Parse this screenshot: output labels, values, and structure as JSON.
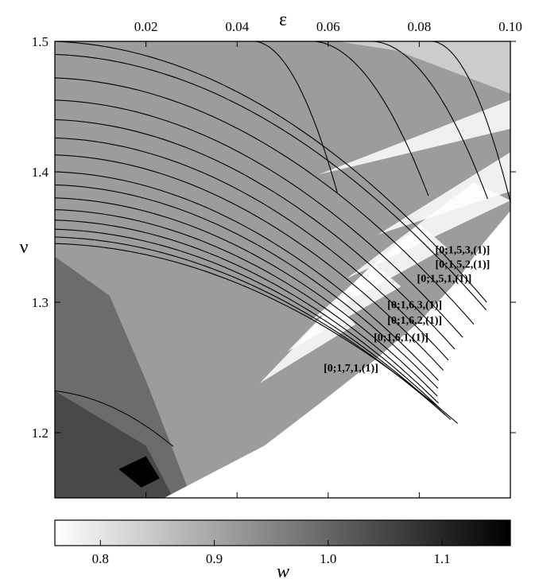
{
  "chart_data": {
    "type": "heatmap",
    "xlabel": "ε",
    "ylabel": "ν",
    "xlim": [
      0.0,
      0.1
    ],
    "ylim": [
      1.15,
      1.5
    ],
    "x_ticks": [
      0.02,
      0.04,
      0.06,
      0.08,
      0.1
    ],
    "x_tick_labels": [
      "0.02",
      "0.04",
      "0.06",
      "0.08",
      "0.10"
    ],
    "y_ticks": [
      1.2,
      1.3,
      1.4,
      1.5
    ],
    "y_tick_labels": [
      "1.2",
      "1.3",
      "1.4",
      "1.5"
    ],
    "x_axis_position": "top",
    "colorbar": {
      "label": "w",
      "range": [
        0.76,
        1.16
      ],
      "ticks": [
        0.8,
        0.9,
        1.0,
        1.1
      ],
      "tick_labels": [
        "0.8",
        "0.9",
        "1.0",
        "1.1"
      ],
      "colors": [
        "#ffffff",
        "#000000"
      ],
      "position": "bottom"
    },
    "branch_labels": [
      {
        "text": "[0;1,5,3,(1)]",
        "x": 0.0835,
        "y": 1.3375
      },
      {
        "text": "[0;1,5,2,(1)]",
        "x": 0.0835,
        "y": 1.3265
      },
      {
        "text": "[0;1,5,1,(1)]",
        "x": 0.0795,
        "y": 1.3155
      },
      {
        "text": "[0;1,6,3,(1)]",
        "x": 0.073,
        "y": 1.2955
      },
      {
        "text": "[0;1,6,2,(1)]",
        "x": 0.073,
        "y": 1.2835
      },
      {
        "text": "[0;1,6,1,(1)]",
        "x": 0.07,
        "y": 1.2705
      },
      {
        "text": "[0;1,7,1,(1)]",
        "x": 0.059,
        "y": 1.247
      }
    ]
  }
}
